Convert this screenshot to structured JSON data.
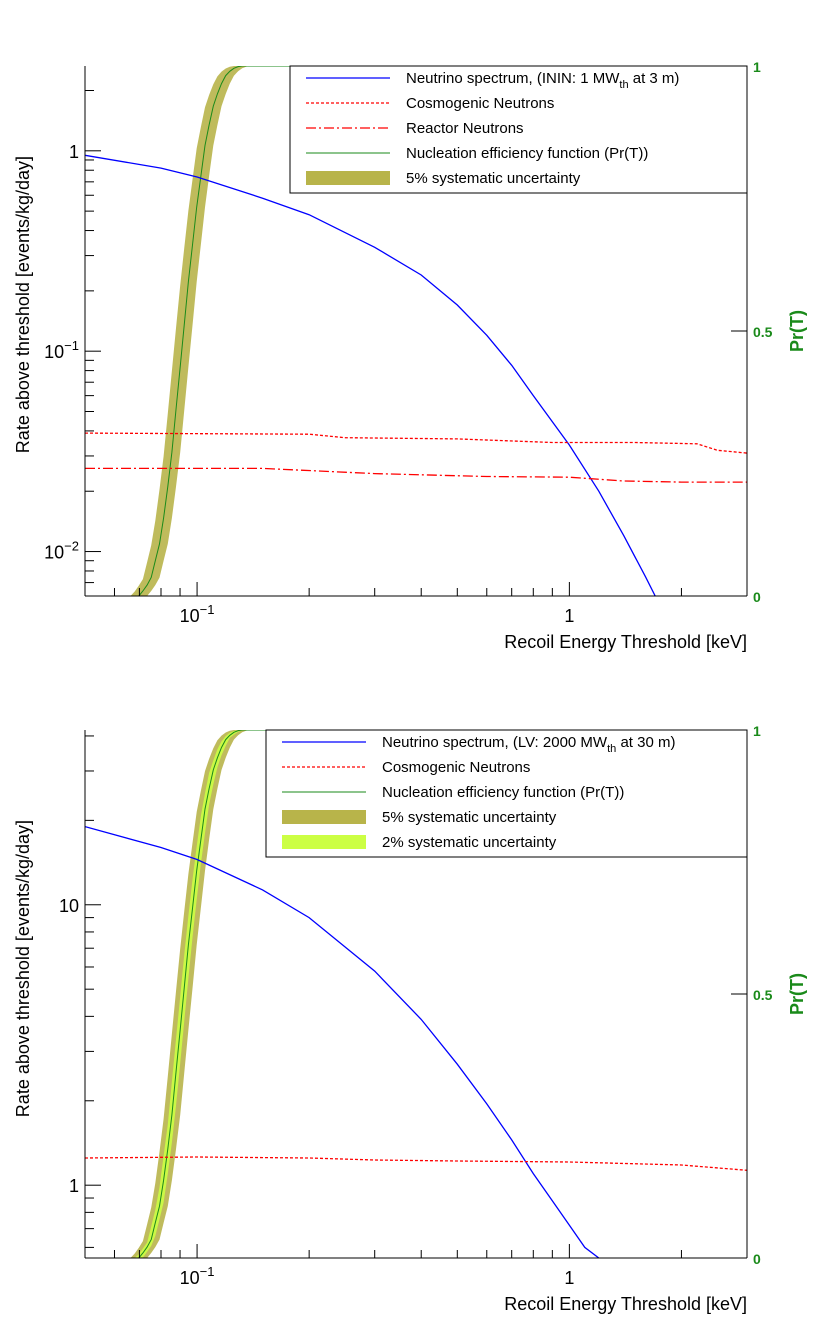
{
  "chart_data": [
    {
      "type": "line",
      "xlabel": "Recoil Energy Threshold [keV]",
      "ylabel": "Rate above threshold [events/kg/day]",
      "y2label": "Pr(T)",
      "xscale": "log",
      "yscale": "log",
      "xlim": [
        0.05,
        3.0
      ],
      "ylim": [
        0.006,
        2.65
      ],
      "y2lim": [
        0,
        1
      ],
      "x_ticklabels": [
        {
          "value": 0.1,
          "base": "10",
          "exp": "−1"
        },
        {
          "value": 1,
          "base": "1",
          "exp": ""
        }
      ],
      "y_ticklabels": [
        {
          "value": 0.01,
          "base": "10",
          "exp": "−2"
        },
        {
          "value": 0.1,
          "base": "10",
          "exp": "−1"
        },
        {
          "value": 1,
          "base": "1",
          "exp": ""
        }
      ],
      "y2_ticklabels": [
        "0",
        "0.5",
        "1"
      ],
      "legend_position": "top-right",
      "legend": [
        {
          "text": "Neutrino spectrum, (ININ: 1 MW",
          "sub": "th",
          "tail": " at 3 m)",
          "style": "solid-blue"
        },
        {
          "text": "Cosmogenic Neutrons",
          "sub": "",
          "tail": "",
          "style": "dotted-red"
        },
        {
          "text": "Reactor Neutrons",
          "sub": "",
          "tail": "",
          "style": "dashdot-red"
        },
        {
          "text": "Nucleation efficiency function (Pr(T))",
          "sub": "",
          "tail": "",
          "style": "thin-green"
        },
        {
          "text": "5% systematic uncertainty",
          "sub": "",
          "tail": "",
          "style": "band-olive"
        }
      ],
      "series": [
        {
          "name": "Neutrino spectrum",
          "color": "#0000ff",
          "dash": "",
          "x": [
            0.05,
            0.08,
            0.1,
            0.15,
            0.2,
            0.3,
            0.4,
            0.5,
            0.6,
            0.7,
            0.8,
            1.0,
            1.2,
            1.4,
            1.6,
            1.7
          ],
          "y": [
            0.95,
            0.82,
            0.74,
            0.58,
            0.48,
            0.33,
            0.24,
            0.17,
            0.12,
            0.085,
            0.06,
            0.034,
            0.02,
            0.012,
            0.0075,
            0.006
          ]
        },
        {
          "name": "Cosmogenic Neutrons",
          "color": "#ff0000",
          "dash": "3,2",
          "x": [
            0.05,
            0.2,
            0.25,
            0.5,
            0.9,
            1.5,
            2.2,
            2.5,
            3.0
          ],
          "y": [
            0.039,
            0.0385,
            0.037,
            0.0365,
            0.035,
            0.035,
            0.0345,
            0.032,
            0.031
          ]
        },
        {
          "name": "Reactor Neutrons",
          "color": "#ff0000",
          "dash": "10,3,2,3",
          "x": [
            0.05,
            0.15,
            0.3,
            0.6,
            1.0,
            1.4,
            2.0,
            3.0
          ],
          "y": [
            0.026,
            0.026,
            0.0245,
            0.0237,
            0.0235,
            0.0225,
            0.0222,
            0.0222
          ]
        }
      ],
      "efficiency": {
        "name": "Nucleation efficiency function (Pr(T))",
        "color": "#1a8a1a",
        "x": [
          0.05,
          0.06,
          0.07,
          0.075,
          0.08,
          0.085,
          0.09,
          0.095,
          0.1,
          0.105,
          0.11,
          0.115,
          0.12,
          0.125,
          0.13,
          0.14,
          0.3,
          1.0,
          3.0
        ],
        "y": [
          0,
          0,
          0.0,
          0.03,
          0.11,
          0.25,
          0.43,
          0.6,
          0.74,
          0.85,
          0.92,
          0.96,
          0.985,
          0.995,
          1,
          1,
          1,
          1,
          1
        ]
      },
      "bands": [
        {
          "name": "5% systematic uncertainty",
          "color": "#b8b44a",
          "opacity": 0.9,
          "shift": 0.05
        }
      ]
    },
    {
      "type": "line",
      "xlabel": "Recoil Energy Threshold [keV]",
      "ylabel": "Rate above threshold [events/kg/day]",
      "y2label": "Pr(T)",
      "xscale": "log",
      "yscale": "log",
      "xlim": [
        0.05,
        3.0
      ],
      "ylim": [
        0.55,
        42.0
      ],
      "y2lim": [
        0,
        1
      ],
      "x_ticklabels": [
        {
          "value": 0.1,
          "base": "10",
          "exp": "−1"
        },
        {
          "value": 1,
          "base": "1",
          "exp": ""
        }
      ],
      "y_ticklabels": [
        {
          "value": 1,
          "base": "1",
          "exp": ""
        },
        {
          "value": 10,
          "base": "10",
          "exp": ""
        }
      ],
      "y2_ticklabels": [
        "0",
        "0.5",
        "1"
      ],
      "legend_position": "top-right",
      "legend": [
        {
          "text": "Neutrino spectrum, (LV: 2000 MW",
          "sub": "th",
          "tail": " at 30 m)",
          "style": "solid-blue"
        },
        {
          "text": "Cosmogenic Neutrons",
          "sub": "",
          "tail": "",
          "style": "dotted-red"
        },
        {
          "text": "Nucleation efficiency function (Pr(T))",
          "sub": "",
          "tail": "",
          "style": "thin-green"
        },
        {
          "text": "5% systematic uncertainty",
          "sub": "",
          "tail": "",
          "style": "band-olive"
        },
        {
          "text": "2% systematic uncertainty",
          "sub": "",
          "tail": "",
          "style": "band-lime"
        }
      ],
      "series": [
        {
          "name": "Neutrino spectrum",
          "color": "#0000ff",
          "dash": "",
          "x": [
            0.05,
            0.08,
            0.1,
            0.15,
            0.2,
            0.3,
            0.4,
            0.5,
            0.6,
            0.7,
            0.8,
            0.9,
            1.0,
            1.1,
            1.2
          ],
          "y": [
            19,
            16,
            14.5,
            11.3,
            9.0,
            5.8,
            3.9,
            2.7,
            1.95,
            1.45,
            1.1,
            0.88,
            0.72,
            0.6,
            0.55
          ]
        },
        {
          "name": "Cosmogenic Neutrons",
          "color": "#ff0000",
          "dash": "3,2",
          "x": [
            0.05,
            0.1,
            0.2,
            0.3,
            0.5,
            1.0,
            2.0,
            3.0
          ],
          "y": [
            1.25,
            1.26,
            1.25,
            1.23,
            1.22,
            1.21,
            1.18,
            1.13
          ]
        }
      ],
      "efficiency": {
        "name": "Nucleation efficiency function (Pr(T))",
        "color": "#1a8a1a",
        "x": [
          0.05,
          0.06,
          0.07,
          0.075,
          0.08,
          0.085,
          0.09,
          0.095,
          0.1,
          0.105,
          0.11,
          0.115,
          0.12,
          0.125,
          0.13,
          0.14,
          0.3,
          1.0,
          3.0
        ],
        "y": [
          0,
          0,
          0.0,
          0.03,
          0.11,
          0.25,
          0.43,
          0.6,
          0.74,
          0.85,
          0.92,
          0.96,
          0.985,
          0.995,
          1,
          1,
          1,
          1,
          1
        ]
      },
      "bands": [
        {
          "name": "5% systematic uncertainty",
          "color": "#b8b44a",
          "opacity": 0.9,
          "shift": 0.05
        },
        {
          "name": "2% systematic uncertainty",
          "color": "#ccff44",
          "opacity": 0.9,
          "shift": 0.02
        }
      ]
    }
  ]
}
